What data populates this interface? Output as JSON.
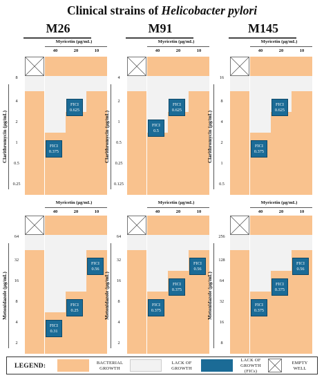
{
  "title": {
    "prefix": "Clinical strains of ",
    "species": "Helicobacter pylori"
  },
  "strains": [
    "M26",
    "M91",
    "M145"
  ],
  "axis_labels": {
    "myricetin": "Myricetin (µg/mL)",
    "clarithromycin": "Clarithromycin (µg/mL)",
    "metronidazole": "Metonidazole (µg/mL)"
  },
  "myricetin_values": [
    "40",
    "20",
    "10"
  ],
  "panels": [
    {
      "strain": "M26",
      "drug": "clarithromycin",
      "row_values": [
        "8",
        "4",
        "2",
        "1",
        "0.5",
        "0.25"
      ],
      "growth": [
        [
          "L",
          "L",
          "L"
        ],
        [
          "L",
          "L",
          "B"
        ],
        [
          "L",
          "B",
          "B"
        ],
        [
          "B",
          "B",
          "B"
        ],
        [
          "B",
          "B",
          "B"
        ],
        [
          "B",
          "B",
          "B"
        ]
      ],
      "fici": [
        {
          "row": 3,
          "col": 0,
          "label": "FICI",
          "value": "0.375"
        },
        {
          "row": 1,
          "col": 1,
          "label": "FICI",
          "value": "0.625"
        }
      ]
    },
    {
      "strain": "M91",
      "drug": "clarithromycin",
      "row_values": [
        "4",
        "2",
        "1",
        "0.5",
        "0.25",
        "0.125"
      ],
      "growth": [
        [
          "L",
          "L",
          "L"
        ],
        [
          "L",
          "L",
          "B"
        ],
        [
          "L",
          "B",
          "B"
        ],
        [
          "B",
          "B",
          "B"
        ],
        [
          "B",
          "B",
          "B"
        ],
        [
          "B",
          "B",
          "B"
        ]
      ],
      "fici": [
        {
          "row": 2,
          "col": 0,
          "label": "FICI",
          "value": "0.5"
        },
        {
          "row": 1,
          "col": 1,
          "label": "FICI",
          "value": "0.625"
        }
      ]
    },
    {
      "strain": "M145",
      "drug": "clarithromycin",
      "row_values": [
        "16",
        "8",
        "4",
        "2",
        "1",
        "0.5"
      ],
      "growth": [
        [
          "L",
          "L",
          "L"
        ],
        [
          "L",
          "L",
          "B"
        ],
        [
          "L",
          "B",
          "B"
        ],
        [
          "B",
          "B",
          "B"
        ],
        [
          "B",
          "B",
          "B"
        ],
        [
          "B",
          "B",
          "B"
        ]
      ],
      "fici": [
        {
          "row": 3,
          "col": 0,
          "label": "FICI",
          "value": "0.375"
        },
        {
          "row": 1,
          "col": 1,
          "label": "FICI",
          "value": "0.625"
        }
      ]
    },
    {
      "strain": "M26",
      "drug": "metronidazole",
      "row_values": [
        "64",
        "32",
        "16",
        "8",
        "4",
        "2"
      ],
      "growth": [
        [
          "L",
          "L",
          "L"
        ],
        [
          "L",
          "L",
          "B"
        ],
        [
          "L",
          "L",
          "B"
        ],
        [
          "L",
          "B",
          "B"
        ],
        [
          "B",
          "B",
          "B"
        ],
        [
          "B",
          "B",
          "B"
        ]
      ],
      "fici": [
        {
          "row": 4,
          "col": 0,
          "label": "FICI",
          "value": "0.31"
        },
        {
          "row": 3,
          "col": 1,
          "label": "FICI",
          "value": "0.25"
        },
        {
          "row": 1,
          "col": 2,
          "label": "FICI",
          "value": "0.56"
        }
      ]
    },
    {
      "strain": "M91",
      "drug": "metronidazole",
      "row_values": [
        "64",
        "32",
        "16",
        "8",
        "4",
        "2"
      ],
      "growth": [
        [
          "L",
          "L",
          "L"
        ],
        [
          "L",
          "L",
          "B"
        ],
        [
          "L",
          "B",
          "B"
        ],
        [
          "B",
          "B",
          "B"
        ],
        [
          "B",
          "B",
          "B"
        ],
        [
          "B",
          "B",
          "B"
        ]
      ],
      "fici": [
        {
          "row": 3,
          "col": 0,
          "label": "FICI",
          "value": "0.375"
        },
        {
          "row": 2,
          "col": 1,
          "label": "FICI",
          "value": "0.375"
        },
        {
          "row": 1,
          "col": 2,
          "label": "FICI",
          "value": "0.56"
        }
      ]
    },
    {
      "strain": "M145",
      "drug": "metronidazole",
      "row_values": [
        "256",
        "128",
        "64",
        "32",
        "16",
        "8"
      ],
      "growth": [
        [
          "L",
          "L",
          "L"
        ],
        [
          "L",
          "L",
          "B"
        ],
        [
          "L",
          "B",
          "B"
        ],
        [
          "B",
          "B",
          "B"
        ],
        [
          "B",
          "B",
          "B"
        ],
        [
          "B",
          "B",
          "B"
        ]
      ],
      "fici": [
        {
          "row": 3,
          "col": 0,
          "label": "FICI",
          "value": "0.375"
        },
        {
          "row": 2,
          "col": 1,
          "label": "FICI",
          "value": "0.375"
        },
        {
          "row": 1,
          "col": 2,
          "label": "FICI",
          "value": "0.56"
        }
      ]
    }
  ],
  "legend": {
    "title": "LEGEND:",
    "items": [
      {
        "kind": "bacterial",
        "text": [
          "BACTERIAL",
          "GROWTH"
        ]
      },
      {
        "kind": "lack",
        "text": [
          "LACK OF",
          "GROWTH"
        ]
      },
      {
        "kind": "fic",
        "text": [
          "LACK OF",
          "GROWTH",
          "(FICs)"
        ]
      },
      {
        "kind": "empty",
        "text": [
          "EMPTY",
          "WELL"
        ]
      }
    ]
  },
  "colors": {
    "bacterial_growth": "#f9c28e",
    "lack_of_growth": "#f2f2f2",
    "fic_cell": "#1b6b96",
    "fic_text": "#ffffff"
  }
}
